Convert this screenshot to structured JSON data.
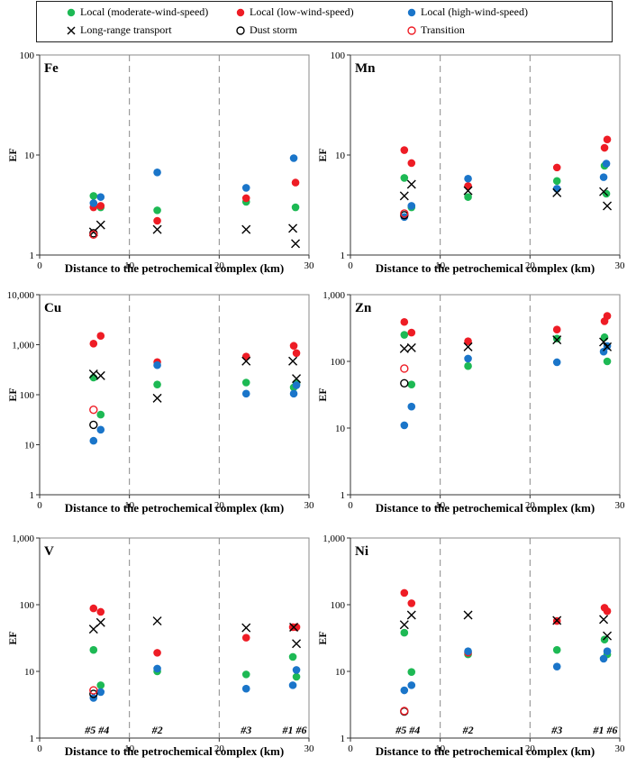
{
  "legend": [
    {
      "label": "Local (moderate-wind-speed)",
      "marker": "filled",
      "color": "#1db954"
    },
    {
      "label": "Local (low-wind-speed)",
      "marker": "filled",
      "color": "#ee1c25"
    },
    {
      "label": "Local (high-wind-speed)",
      "marker": "filled",
      "color": "#1a75c9"
    },
    {
      "label": "Long-range transport",
      "marker": "x",
      "color": "#000000"
    },
    {
      "label": "Dust storm",
      "marker": "open",
      "color": "#000000"
    },
    {
      "label": "Transition",
      "marker": "open",
      "color": "#ee1c25"
    }
  ],
  "chart_data": [
    {
      "type": "scatter",
      "title": "Fe",
      "xlabel": "Distance to the petrochemical complex (km)",
      "ylabel": "EF",
      "xlim": [
        0,
        30
      ],
      "ylim": [
        1,
        100
      ],
      "yscale": "log",
      "yticks": [
        "1",
        "10",
        "100"
      ],
      "xticks": [
        "0",
        "10",
        "20",
        "30"
      ],
      "vlines": [
        10,
        20
      ],
      "site_labels": [],
      "series": [
        {
          "name": "Local (moderate-wind-speed)",
          "points": [
            [
              6.0,
              3.9
            ],
            [
              6.8,
              3.0
            ],
            [
              13.1,
              2.8
            ],
            [
              23.0,
              3.4
            ],
            [
              28.5,
              3.0
            ]
          ]
        },
        {
          "name": "Local (low-wind-speed)",
          "points": [
            [
              6.0,
              3.0
            ],
            [
              6.8,
              3.1
            ],
            [
              13.1,
              2.2
            ],
            [
              23.0,
              3.7
            ],
            [
              28.5,
              5.3
            ]
          ]
        },
        {
          "name": "Local (high-wind-speed)",
          "points": [
            [
              6.0,
              3.3
            ],
            [
              6.8,
              3.8
            ],
            [
              13.1,
              6.7
            ],
            [
              23.0,
              4.7
            ],
            [
              28.3,
              9.3
            ]
          ]
        },
        {
          "name": "Long-range transport",
          "points": [
            [
              6.0,
              1.7
            ],
            [
              6.8,
              2.0
            ],
            [
              13.1,
              1.8
            ],
            [
              23.0,
              1.8
            ],
            [
              28.2,
              1.85
            ],
            [
              28.5,
              1.3
            ]
          ]
        },
        {
          "name": "Dust storm",
          "points": [
            [
              6.0,
              1.65
            ]
          ]
        },
        {
          "name": "Transition",
          "points": [
            [
              6.0,
              1.6
            ]
          ]
        }
      ]
    },
    {
      "type": "scatter",
      "title": "Mn",
      "xlabel": "Distance to the petrochemical complex (km)",
      "ylabel": "EF",
      "xlim": [
        0,
        30
      ],
      "ylim": [
        1,
        100
      ],
      "yscale": "log",
      "yticks": [
        "1",
        "10",
        "100"
      ],
      "xticks": [
        "0",
        "10",
        "20",
        "30"
      ],
      "vlines": [
        10,
        20
      ],
      "site_labels": [],
      "series": [
        {
          "name": "Local (moderate-wind-speed)",
          "points": [
            [
              6.0,
              5.9
            ],
            [
              6.8,
              3.0
            ],
            [
              13.1,
              3.8
            ],
            [
              23.0,
              5.5
            ],
            [
              28.3,
              7.8
            ],
            [
              28.5,
              4.1
            ]
          ]
        },
        {
          "name": "Local (low-wind-speed)",
          "points": [
            [
              6.0,
              11.2
            ],
            [
              6.8,
              8.3
            ],
            [
              13.1,
              4.9
            ],
            [
              23.0,
              7.5
            ],
            [
              28.3,
              11.8
            ],
            [
              28.6,
              14.3
            ]
          ]
        },
        {
          "name": "Local (high-wind-speed)",
          "points": [
            [
              6.0,
              2.4
            ],
            [
              6.8,
              3.1
            ],
            [
              13.1,
              5.8
            ],
            [
              23.0,
              4.6
            ],
            [
              28.2,
              6.0
            ],
            [
              28.5,
              8.2
            ]
          ]
        },
        {
          "name": "Long-range transport",
          "points": [
            [
              6.0,
              3.9
            ],
            [
              6.8,
              5.1
            ],
            [
              13.1,
              4.4
            ],
            [
              23.0,
              4.2
            ],
            [
              28.2,
              4.3
            ],
            [
              28.6,
              3.1
            ]
          ]
        },
        {
          "name": "Dust storm",
          "points": [
            [
              6.0,
              2.5
            ]
          ]
        },
        {
          "name": "Transition",
          "points": [
            [
              6.0,
              2.6
            ]
          ]
        }
      ]
    },
    {
      "type": "scatter",
      "title": "Cu",
      "xlabel": "Distance to the petrochemical complex (km)",
      "ylabel": "EF",
      "xlim": [
        0,
        30
      ],
      "ylim": [
        1,
        10000
      ],
      "yscale": "log",
      "yticks": [
        "1",
        "10",
        "100",
        "1,000",
        "10,000"
      ],
      "xticks": [
        "0",
        "10",
        "20",
        "30"
      ],
      "vlines": [
        10,
        20
      ],
      "site_labels": [],
      "series": [
        {
          "name": "Local (moderate-wind-speed)",
          "points": [
            [
              6.0,
              220
            ],
            [
              6.8,
              40
            ],
            [
              13.1,
              160
            ],
            [
              23.0,
              175
            ],
            [
              28.3,
              140
            ],
            [
              28.6,
              170
            ]
          ]
        },
        {
          "name": "Local (low-wind-speed)",
          "points": [
            [
              6.0,
              1050
            ],
            [
              6.8,
              1500
            ],
            [
              13.1,
              450
            ],
            [
              23.0,
              580
            ],
            [
              28.3,
              950
            ],
            [
              28.6,
              680
            ]
          ]
        },
        {
          "name": "Local (high-wind-speed)",
          "points": [
            [
              6.0,
              12
            ],
            [
              6.8,
              20
            ],
            [
              13.1,
              390
            ],
            [
              23.0,
              105
            ],
            [
              28.3,
              105
            ],
            [
              28.6,
              155
            ]
          ]
        },
        {
          "name": "Long-range transport",
          "points": [
            [
              6.0,
              260
            ],
            [
              6.8,
              240
            ],
            [
              13.1,
              85
            ],
            [
              23.0,
              470
            ],
            [
              28.2,
              470
            ],
            [
              28.6,
              210
            ]
          ]
        },
        {
          "name": "Dust storm",
          "points": [
            [
              6.0,
              25
            ]
          ]
        },
        {
          "name": "Transition",
          "points": [
            [
              6.0,
              50
            ]
          ]
        }
      ]
    },
    {
      "type": "scatter",
      "title": "Zn",
      "xlabel": "Distance to the petrochemical complex (km)",
      "ylabel": "EF",
      "xlim": [
        0,
        30
      ],
      "ylim": [
        1,
        1000
      ],
      "yscale": "log",
      "yticks": [
        "1",
        "10",
        "100",
        "1,000"
      ],
      "xticks": [
        "0",
        "10",
        "20",
        "30"
      ],
      "vlines": [
        10,
        20
      ],
      "site_labels": [],
      "series": [
        {
          "name": "Local (moderate-wind-speed)",
          "points": [
            [
              6.0,
              250
            ],
            [
              6.8,
              45
            ],
            [
              13.1,
              85
            ],
            [
              23.0,
              220
            ],
            [
              28.3,
              230
            ],
            [
              28.6,
              100
            ]
          ]
        },
        {
          "name": "Local (low-wind-speed)",
          "points": [
            [
              6.0,
              390
            ],
            [
              6.8,
              270
            ],
            [
              13.1,
              200
            ],
            [
              23.0,
              300
            ],
            [
              28.3,
              400
            ],
            [
              28.6,
              480
            ]
          ]
        },
        {
          "name": "Local (high-wind-speed)",
          "points": [
            [
              6.0,
              11
            ],
            [
              6.8,
              21
            ],
            [
              13.1,
              110
            ],
            [
              23.0,
              97
            ],
            [
              28.2,
              140
            ],
            [
              28.6,
              170
            ]
          ]
        },
        {
          "name": "Long-range transport",
          "points": [
            [
              6.0,
              155
            ],
            [
              6.8,
              160
            ],
            [
              13.1,
              165
            ],
            [
              23.0,
              210
            ],
            [
              28.2,
              195
            ],
            [
              28.6,
              165
            ]
          ]
        },
        {
          "name": "Dust storm",
          "points": [
            [
              6.0,
              47
            ]
          ]
        },
        {
          "name": "Transition",
          "points": [
            [
              6.0,
              78
            ]
          ]
        }
      ]
    },
    {
      "type": "scatter",
      "title": "V",
      "xlabel": "Distance to the petrochemical complex (km)",
      "ylabel": "EF",
      "xlim": [
        0,
        30
      ],
      "ylim": [
        1,
        1000
      ],
      "yscale": "log",
      "yticks": [
        "1",
        "10",
        "100",
        "1,000"
      ],
      "xticks": [
        "0",
        "10",
        "20",
        "30"
      ],
      "vlines": [
        10,
        20
      ],
      "site_labels": [
        "#5 #4",
        "#2",
        "#3",
        "#1 #6"
      ],
      "series": [
        {
          "name": "Local (moderate-wind-speed)",
          "points": [
            [
              6.0,
              21
            ],
            [
              6.8,
              6.2
            ],
            [
              13.1,
              10
            ],
            [
              23.0,
              9
            ],
            [
              28.2,
              16.5
            ],
            [
              28.6,
              8.3
            ]
          ]
        },
        {
          "name": "Local (low-wind-speed)",
          "points": [
            [
              6.0,
              88
            ],
            [
              6.8,
              78
            ],
            [
              13.1,
              19
            ],
            [
              23.0,
              32
            ],
            [
              28.2,
              46
            ],
            [
              28.6,
              46
            ]
          ]
        },
        {
          "name": "Local (high-wind-speed)",
          "points": [
            [
              6.0,
              4.0
            ],
            [
              6.8,
              4.9
            ],
            [
              13.1,
              11
            ],
            [
              23.0,
              5.5
            ],
            [
              28.2,
              6.2
            ],
            [
              28.6,
              10.5
            ]
          ]
        },
        {
          "name": "Long-range transport",
          "points": [
            [
              6.0,
              43
            ],
            [
              6.8,
              54
            ],
            [
              13.1,
              57
            ],
            [
              23.0,
              45
            ],
            [
              28.3,
              46
            ],
            [
              28.6,
              26
            ]
          ]
        },
        {
          "name": "Dust storm",
          "points": [
            [
              6.0,
              4.6
            ]
          ]
        },
        {
          "name": "Transition",
          "points": [
            [
              6.0,
              5.2
            ]
          ]
        }
      ]
    },
    {
      "type": "scatter",
      "title": "Ni",
      "xlabel": "Distance to the petrochemical complex (km)",
      "ylabel": "EF",
      "xlim": [
        0,
        30
      ],
      "ylim": [
        1,
        1000
      ],
      "yscale": "log",
      "yticks": [
        "1",
        "10",
        "100",
        "1,000"
      ],
      "xticks": [
        "0",
        "10",
        "20",
        "30"
      ],
      "vlines": [
        10,
        20
      ],
      "site_labels": [
        "#5 #4",
        "#2",
        "#3",
        "#1 #6"
      ],
      "series": [
        {
          "name": "Local (moderate-wind-speed)",
          "points": [
            [
              6.0,
              38
            ],
            [
              6.8,
              9.8
            ],
            [
              13.1,
              18
            ],
            [
              23.0,
              21
            ],
            [
              28.3,
              30
            ],
            [
              28.6,
              18
            ]
          ]
        },
        {
          "name": "Local (low-wind-speed)",
          "points": [
            [
              6.0,
              150
            ],
            [
              6.8,
              105
            ],
            [
              13.1,
              19
            ],
            [
              23.0,
              57
            ],
            [
              28.3,
              90
            ],
            [
              28.6,
              80
            ]
          ]
        },
        {
          "name": "Local (high-wind-speed)",
          "points": [
            [
              6.0,
              5.2
            ],
            [
              6.8,
              6.2
            ],
            [
              13.1,
              20
            ],
            [
              23.0,
              11.8
            ],
            [
              28.2,
              15.5
            ],
            [
              28.6,
              20
            ]
          ]
        },
        {
          "name": "Long-range transport",
          "points": [
            [
              6.0,
              50
            ],
            [
              6.8,
              70
            ],
            [
              13.1,
              70
            ],
            [
              23.0,
              58
            ],
            [
              28.2,
              60
            ],
            [
              28.6,
              34
            ]
          ]
        },
        {
          "name": "Dust storm",
          "points": [
            [
              6.0,
              2.5
            ]
          ]
        },
        {
          "name": "Transition",
          "points": [
            [
              6.0,
              2.55
            ]
          ]
        }
      ]
    }
  ]
}
